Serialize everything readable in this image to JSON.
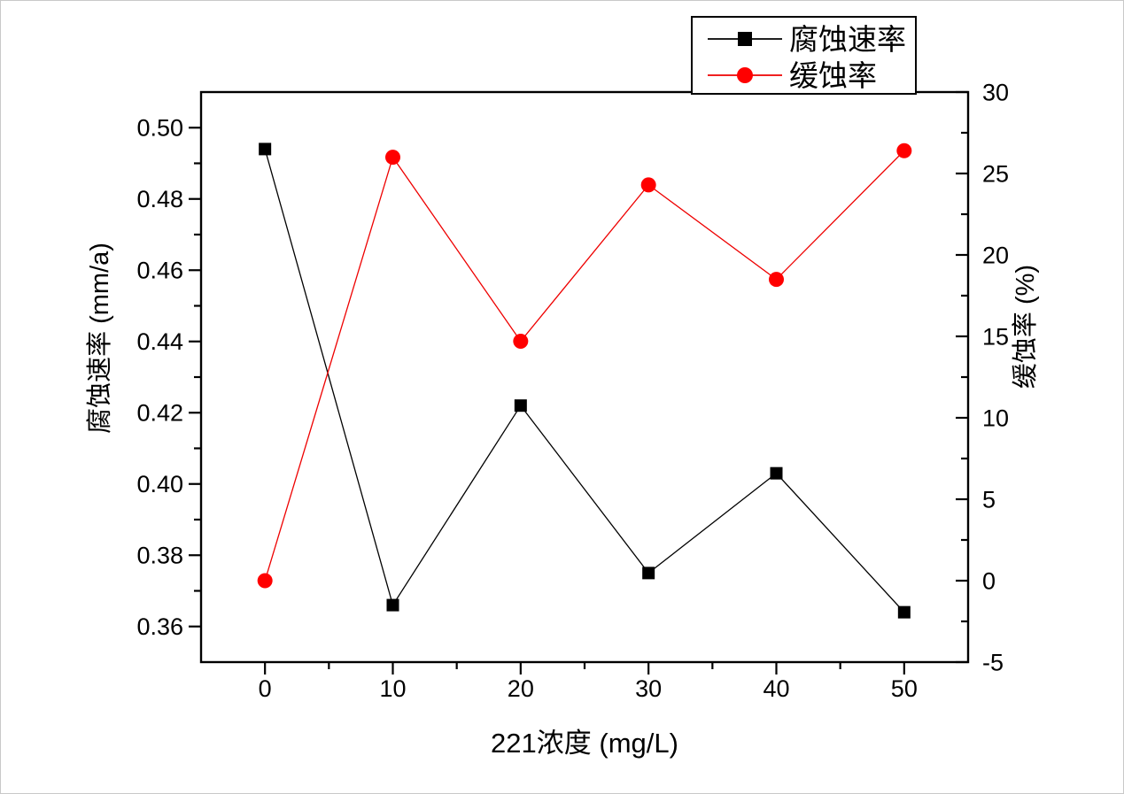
{
  "page": {
    "background": "#ffffff"
  },
  "chart_data": {
    "type": "line",
    "title": "",
    "xlabel": "221浓度 (mg/L)",
    "ylabel_left": "腐蚀速率 (mm/a)",
    "ylabel_right": "缓蚀率 (%)",
    "x": [
      0,
      10,
      20,
      30,
      40,
      50
    ],
    "series": [
      {
        "name": "腐蚀速率",
        "axis": "left",
        "color": "#000000",
        "marker": "square",
        "marker_color": "#000000",
        "values": [
          0.494,
          0.366,
          0.422,
          0.375,
          0.403,
          0.364
        ]
      },
      {
        "name": "缓蚀率",
        "axis": "right",
        "color": "#ee0000",
        "marker": "circle",
        "marker_color": "#ff0000",
        "values": [
          0.0,
          26.0,
          14.7,
          24.3,
          18.5,
          26.4
        ]
      }
    ],
    "xlim": [
      -5,
      55
    ],
    "ylim_left": [
      0.35,
      0.51
    ],
    "ylim_right": [
      -5,
      30
    ],
    "x_ticks": {
      "values": [
        0,
        10,
        20,
        30,
        40,
        50
      ],
      "labels": [
        "0",
        "10",
        "20",
        "30",
        "40",
        "50"
      ],
      "minor": [
        5,
        15,
        25,
        35,
        45
      ]
    },
    "left_ticks": {
      "values": [
        0.36,
        0.38,
        0.4,
        0.42,
        0.44,
        0.46,
        0.48,
        0.5
      ],
      "labels": [
        "0.36",
        "0.38",
        "0.40",
        "0.42",
        "0.44",
        "0.46",
        "0.48",
        "0.50"
      ],
      "minor": [
        0.37,
        0.39,
        0.41,
        0.43,
        0.45,
        0.47,
        0.49
      ]
    },
    "right_ticks": {
      "values": [
        -5,
        0,
        5,
        10,
        15,
        20,
        25,
        30
      ],
      "labels": [
        "-5",
        "0",
        "5",
        "10",
        "15",
        "20",
        "25",
        "30"
      ],
      "minor": [
        -2.5,
        2.5,
        7.5,
        12.5,
        17.5,
        22.5,
        27.5
      ]
    },
    "grid": false,
    "legend": {
      "position": "top-right",
      "entries": [
        "腐蚀速率",
        "缓蚀率"
      ]
    }
  }
}
